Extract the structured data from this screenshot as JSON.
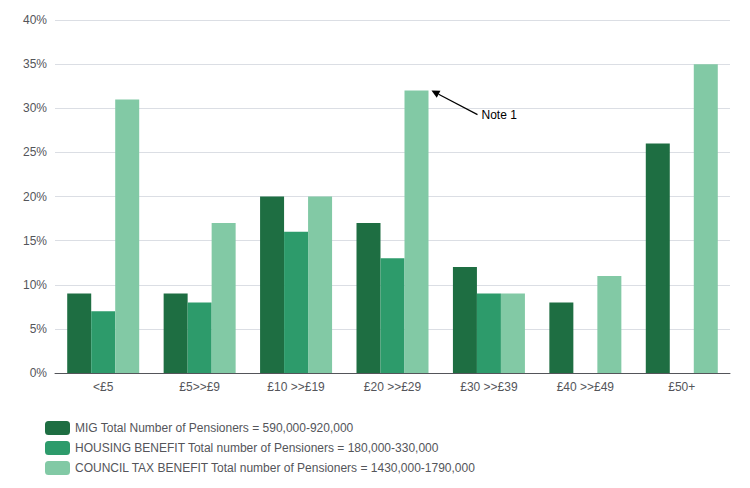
{
  "chart_data": {
    "type": "bar",
    "categories": [
      "<£5",
      "£5>>£9",
      "£10 >>£19",
      "£20 >>£29",
      "£30 >>£39",
      "£40 >>£49",
      "£50+"
    ],
    "series": [
      {
        "name": "MIG Total Number of Pensioners = 590,000-920,000",
        "color": "#1e6e42",
        "values": [
          9,
          9,
          20,
          17,
          12,
          8,
          26
        ]
      },
      {
        "name": "HOUSING BENEFIT Total number of Pensioners = 180,000-330,000",
        "color": "#2d9b6b",
        "values": [
          7,
          8,
          16,
          13,
          9,
          0,
          0
        ]
      },
      {
        "name": "COUNCIL TAX BENEFIT Total number of Pensioners = 1430,000-1790,000",
        "color": "#82c9a5",
        "values": [
          31,
          17,
          20,
          32,
          9,
          11,
          35
        ]
      }
    ],
    "ylim": [
      0,
      40
    ],
    "yticks": [
      {
        "value": 0,
        "label": "0%"
      },
      {
        "value": 5,
        "label": "5%"
      },
      {
        "value": 10,
        "label": "10%"
      },
      {
        "value": 15,
        "label": "15%"
      },
      {
        "value": 20,
        "label": "20%"
      },
      {
        "value": 25,
        "label": "25%"
      },
      {
        "value": 30,
        "label": "30%"
      },
      {
        "value": 35,
        "label": "35%"
      },
      {
        "value": 40,
        "label": "40%"
      }
    ],
    "grid": true,
    "legend": "bottom",
    "annotations": [
      {
        "text": "Note 1",
        "category": "£20 >>£29",
        "series": "COUNCIL TAX BENEFIT Total number of Pensioners = 1430,000-1790,000",
        "y": 32
      }
    ]
  }
}
